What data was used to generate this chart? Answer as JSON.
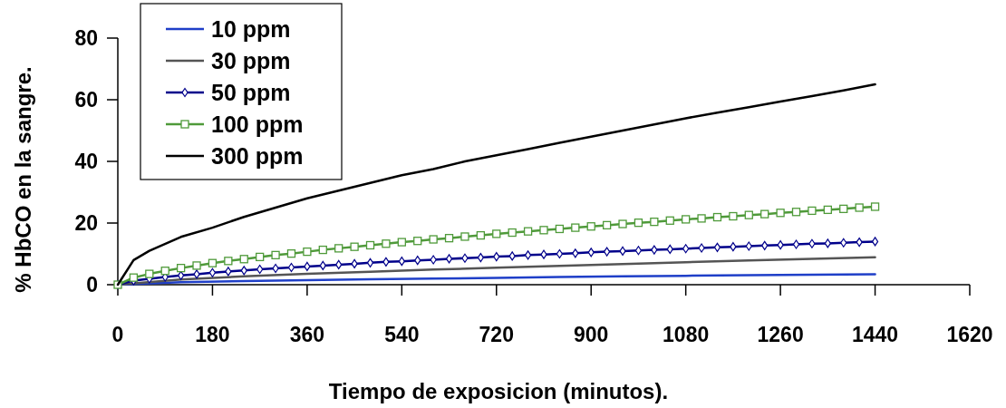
{
  "chart_data": {
    "type": "line",
    "xlabel": "Tiempo de exposicion (minutos).",
    "ylabel": "% HbCO en la sangre.",
    "xlim": [
      0,
      1620
    ],
    "xticks": [
      0,
      180,
      360,
      540,
      720,
      900,
      1080,
      1260,
      1440,
      1620
    ],
    "ylim": [
      0,
      80
    ],
    "yticks": [
      0,
      20,
      40,
      60,
      80
    ],
    "grid": false,
    "legend": "top left",
    "line_style": "solid",
    "series": [
      {
        "name": "10 ppm",
        "color": "#1f3fc8",
        "marker": "none",
        "x": [
          0,
          120,
          240,
          360,
          480,
          600,
          720,
          840,
          960,
          1080,
          1200,
          1320,
          1440
        ],
        "values": [
          0,
          0.8,
          1.2,
          1.5,
          1.8,
          2.0,
          2.2,
          2.5,
          2.7,
          2.9,
          3.1,
          3.2,
          3.4
        ]
      },
      {
        "name": "30 ppm",
        "color": "#555555",
        "marker": "none",
        "x": [
          0,
          120,
          240,
          360,
          480,
          600,
          720,
          840,
          960,
          1080,
          1200,
          1320,
          1440
        ],
        "values": [
          0,
          1.7,
          2.7,
          3.5,
          4.2,
          4.9,
          5.5,
          6.1,
          6.7,
          7.3,
          7.9,
          8.4,
          8.9
        ]
      },
      {
        "name": "50 ppm",
        "color": "#00008b",
        "marker": "diamond",
        "x": [
          0,
          30,
          60,
          90,
          120,
          150,
          180,
          210,
          240,
          270,
          300,
          330,
          360,
          390,
          420,
          450,
          480,
          510,
          540,
          570,
          600,
          630,
          660,
          690,
          720,
          750,
          780,
          810,
          840,
          870,
          900,
          930,
          960,
          990,
          1020,
          1050,
          1080,
          1110,
          1140,
          1170,
          1200,
          1230,
          1260,
          1290,
          1320,
          1350,
          1380,
          1410,
          1440
        ],
        "values": [
          0,
          1.3,
          1.9,
          2.5,
          3.0,
          3.4,
          3.9,
          4.3,
          4.6,
          5.0,
          5.3,
          5.6,
          5.9,
          6.2,
          6.5,
          6.8,
          7.1,
          7.4,
          7.6,
          7.9,
          8.1,
          8.4,
          8.6,
          8.8,
          9.1,
          9.3,
          9.6,
          9.8,
          10.0,
          10.2,
          10.5,
          10.7,
          10.9,
          11.1,
          11.3,
          11.5,
          11.7,
          11.9,
          12.1,
          12.3,
          12.5,
          12.7,
          12.9,
          13.1,
          13.3,
          13.4,
          13.6,
          13.8,
          14.0
        ]
      },
      {
        "name": "100 ppm",
        "color": "#4f9a3a",
        "marker": "square",
        "x": [
          0,
          30,
          60,
          90,
          120,
          150,
          180,
          210,
          240,
          270,
          300,
          330,
          360,
          390,
          420,
          450,
          480,
          510,
          540,
          570,
          600,
          630,
          660,
          690,
          720,
          750,
          780,
          810,
          840,
          870,
          900,
          930,
          960,
          990,
          1020,
          1050,
          1080,
          1110,
          1140,
          1170,
          1200,
          1230,
          1260,
          1290,
          1320,
          1350,
          1380,
          1410,
          1440
        ],
        "values": [
          0,
          2.3,
          3.5,
          4.5,
          5.4,
          6.2,
          7.0,
          7.7,
          8.3,
          9.0,
          9.6,
          10.1,
          10.7,
          11.3,
          11.8,
          12.3,
          12.8,
          13.3,
          13.8,
          14.2,
          14.7,
          15.1,
          15.6,
          16.0,
          16.5,
          16.9,
          17.3,
          17.7,
          18.1,
          18.5,
          18.9,
          19.3,
          19.7,
          20.1,
          20.4,
          20.8,
          21.2,
          21.5,
          21.9,
          22.2,
          22.6,
          22.9,
          23.3,
          23.6,
          24.0,
          24.3,
          24.6,
          25.0,
          25.3
        ]
      },
      {
        "name": "300 ppm",
        "color": "#000000",
        "marker": "none",
        "x": [
          0,
          30,
          60,
          120,
          180,
          240,
          300,
          360,
          420,
          480,
          540,
          600,
          660,
          720,
          780,
          840,
          900,
          960,
          1020,
          1080,
          1140,
          1200,
          1260,
          1320,
          1380,
          1440
        ],
        "values": [
          0,
          8,
          11,
          15.5,
          18.5,
          22,
          25,
          28,
          30.5,
          33,
          35.5,
          37.5,
          40,
          42,
          44,
          46,
          48,
          50,
          52,
          54,
          55.8,
          57.6,
          59.4,
          61.2,
          63,
          65
        ]
      }
    ]
  }
}
